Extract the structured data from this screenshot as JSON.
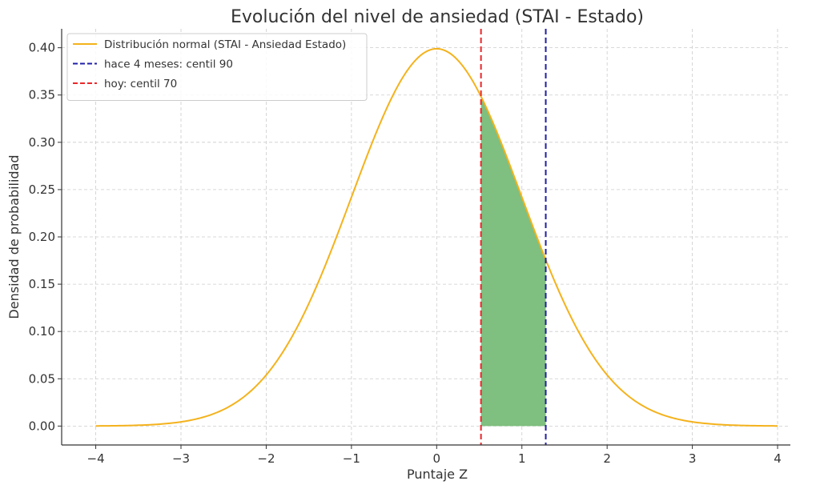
{
  "chart_data": {
    "type": "line",
    "title": "Evolución del nivel de ansiedad (STAI - Estado)",
    "xlabel": "Puntaje Z",
    "ylabel": "Densidad de probabilidad",
    "xlim": [
      -4.4,
      4.15
    ],
    "ylim": [
      -0.02,
      0.42
    ],
    "xticks": [
      -4,
      -3,
      -2,
      -1,
      0,
      1,
      2,
      3,
      4
    ],
    "xtick_labels": [
      "−4",
      "−3",
      "−2",
      "−1",
      "0",
      "1",
      "2",
      "3",
      "4"
    ],
    "yticks": [
      0.0,
      0.05,
      0.1,
      0.15,
      0.2,
      0.25,
      0.3,
      0.35,
      0.4
    ],
    "ytick_labels": [
      "0.00",
      "0.05",
      "0.10",
      "0.15",
      "0.20",
      "0.25",
      "0.30",
      "0.35",
      "0.40"
    ],
    "grid": true,
    "legend_position": "top-left",
    "series": [
      {
        "name": "Distribución normal (STAI - Ansiedad Estado)",
        "kind": "curve",
        "distribution": "normal",
        "mean": 0,
        "sd": 1,
        "x_range": [
          -4,
          4
        ],
        "color": "#f4b21c"
      },
      {
        "name": "hace 4 meses: centil 90",
        "kind": "vline",
        "x": 1.28,
        "color": "#1f1fa8"
      },
      {
        "name": "hoy: centil 70",
        "kind": "vline",
        "x": 0.52,
        "color": "#e8282b"
      }
    ],
    "shaded_region": {
      "x_from": 0.52,
      "x_to": 1.28,
      "color": "#7fbf7f"
    }
  }
}
